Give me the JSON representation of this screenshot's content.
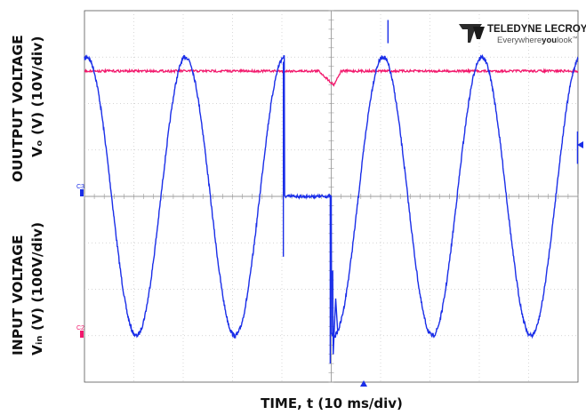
{
  "chart_data": {
    "type": "line",
    "xlabel": "TIME, t (10 ms/div)",
    "ylabel_top_line1": "OUUTPUT VOLTAGE",
    "ylabel_top_line2": "Vₒ (V) (10V/div)",
    "ylabel_bottom_line1": "INPUT VOLTAGE",
    "ylabel_bottom_line2": "Vᵢₙ (V) (100V/div)",
    "x_divisions": 10,
    "y_divisions": 8,
    "grid": true,
    "channel_markers": [
      "C3",
      "C2"
    ],
    "brand": {
      "name": "TELEDYNE LECROY",
      "tagline_pre": "Everywhere",
      "tagline_bold": "you",
      "tagline_post": "look",
      "tm": "™"
    },
    "series": [
      {
        "color": "#1a2ee8",
        "x_unit": "ms",
        "zero_div": 4.0,
        "amplitude_div": 3.0,
        "period_ms": 20,
        "peak_ms": 0.5,
        "dropout_ms": [
          40.5,
          50.0
        ],
        "dropout_value_div": 4.0
      },
      {
        "color": "#f2186c",
        "x_unit": "ms",
        "level_div": 1.3,
        "dip_center_ms": 50.5,
        "dip_depth_div": 0.3
      }
    ]
  },
  "colors": {
    "grid": "#c8c8c8",
    "frame": "#555555",
    "blue": "#1a2ee8",
    "pink": "#f2186c",
    "text": "#111111"
  }
}
